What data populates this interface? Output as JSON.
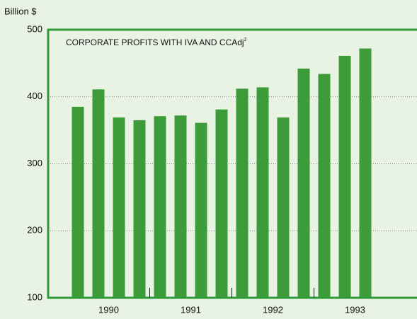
{
  "chart_data": {
    "type": "bar",
    "title": "CORPORATE PROFITS WITH IVA AND CCAdj",
    "title_note": "2",
    "ylabel": "Billion $",
    "categories": [
      null,
      null,
      null,
      null,
      null,
      null,
      null,
      null,
      null,
      null,
      null,
      null,
      null,
      null,
      null
    ],
    "year_labels": [
      "1990",
      "1991",
      "1992",
      "1993"
    ],
    "values": [
      385,
      411,
      369,
      365,
      371,
      372,
      361,
      381,
      412,
      414,
      369,
      442,
      434,
      461,
      472
    ],
    "color": "#3e9b3a",
    "ylim": [
      100,
      500
    ],
    "yticks": [
      100,
      200,
      300,
      400,
      500
    ],
    "grid": true
  }
}
